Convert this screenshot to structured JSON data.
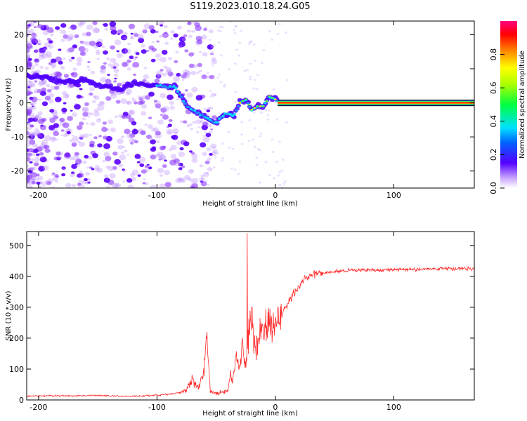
{
  "title": "S119.2023.010.18.24.G05",
  "chart_data": [
    {
      "type": "heatmap",
      "xlabel": "Height of straight line (km)",
      "ylabel": "Frequency (Hz)",
      "xlim": [
        -210,
        168
      ],
      "ylim": [
        -25,
        24
      ],
      "xticks": [
        -200,
        -100,
        0,
        100
      ],
      "yticks": [
        -20,
        -10,
        0,
        10,
        20
      ],
      "colorbar": {
        "label": "Normalized spectral amplitude",
        "range": [
          0,
          1
        ],
        "ticks": [
          0.0,
          0.2,
          0.4,
          0.6,
          0.8
        ]
      },
      "ridge": {
        "x": [
          -210,
          -200,
          -190,
          -180,
          -170,
          -160,
          -150,
          -140,
          -130,
          -120,
          -110,
          -100,
          -95,
          -90,
          -85,
          -80,
          -75,
          -70,
          -65,
          -60,
          -55,
          -50,
          -45,
          -40,
          -35,
          -30,
          -25,
          -20,
          -15,
          -10,
          -5,
          0,
          5,
          50,
          100,
          168
        ],
        "y": [
          8,
          8,
          7,
          6,
          6,
          7,
          5,
          5,
          4,
          6,
          5,
          5,
          5,
          4.5,
          5,
          2,
          -1,
          -2,
          -3,
          -4,
          -5,
          -6,
          -4,
          -3,
          -4,
          0,
          1,
          -2,
          -1,
          -1,
          2,
          1,
          0,
          0,
          0,
          0
        ]
      }
    },
    {
      "type": "line",
      "xlabel": "Height of straight line (km)",
      "ylabel": "SNR (10 * v/v)",
      "xlim": [
        -210,
        168
      ],
      "ylim": [
        0,
        545
      ],
      "xticks": [
        -200,
        -100,
        0,
        100
      ],
      "yticks": [
        0,
        100,
        200,
        300,
        400,
        500
      ],
      "series": [
        {
          "x": [
            -210,
            -190,
            -170,
            -150,
            -130,
            -110,
            -90,
            -80,
            -75,
            -70,
            -65,
            -60,
            -58,
            -56,
            -55,
            -50,
            -45,
            -40,
            -38,
            -36,
            -33,
            -30,
            -28,
            -25,
            -22,
            -21,
            -20,
            -18,
            -15,
            -12,
            -10,
            -5,
            0,
            5,
            10,
            15,
            20,
            25,
            30,
            40,
            50,
            60,
            70,
            80,
            100,
            120,
            140,
            160,
            168
          ],
          "y": [
            12,
            14,
            13,
            15,
            12,
            13,
            18,
            25,
            35,
            70,
            40,
            110,
            190,
            90,
            30,
            20,
            25,
            30,
            80,
            60,
            150,
            90,
            180,
            110,
            200,
            260,
            300,
            150,
            170,
            230,
            230,
            250,
            250,
            270,
            310,
            340,
            370,
            395,
            405,
            410,
            415,
            418,
            420,
            420,
            422,
            423,
            425,
            425,
            425
          ]
        }
      ]
    }
  ]
}
